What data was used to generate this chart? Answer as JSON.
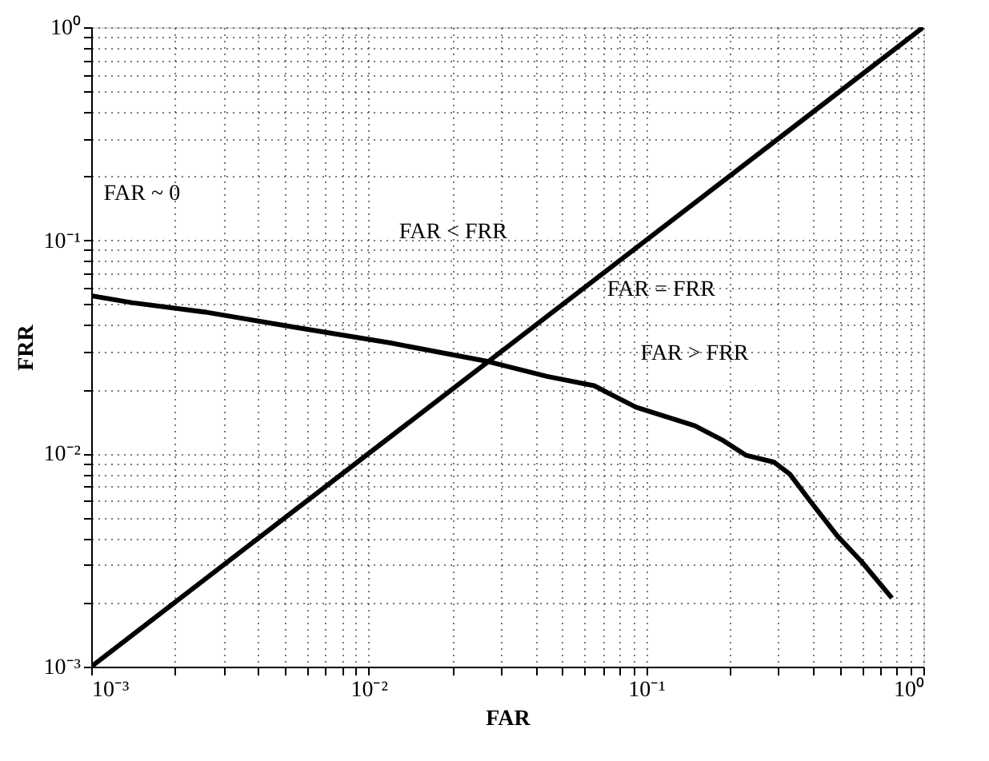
{
  "chart_data": {
    "type": "line",
    "xlabel": "FAR",
    "ylabel": "FRR",
    "log": "xy",
    "grid": true,
    "line_style": "solid",
    "marker": "none",
    "xlim": [
      0.001,
      1
    ],
    "ylim": [
      0.001,
      1
    ],
    "xticks": [
      {
        "value": 0.001,
        "label": "10⁻³"
      },
      {
        "value": 0.002,
        "label": null
      },
      {
        "value": 0.003,
        "label": null
      },
      {
        "value": 0.004,
        "label": null
      },
      {
        "value": 0.005,
        "label": null
      },
      {
        "value": 0.006,
        "label": null
      },
      {
        "value": 0.007,
        "label": null
      },
      {
        "value": 0.008,
        "label": null
      },
      {
        "value": 0.009,
        "label": null
      },
      {
        "value": 0.01,
        "label": "10⁻²"
      },
      {
        "value": 0.02,
        "label": null
      },
      {
        "value": 0.03,
        "label": null
      },
      {
        "value": 0.04,
        "label": null
      },
      {
        "value": 0.05,
        "label": null
      },
      {
        "value": 0.06,
        "label": null
      },
      {
        "value": 0.07,
        "label": null
      },
      {
        "value": 0.08,
        "label": null
      },
      {
        "value": 0.09,
        "label": null
      },
      {
        "value": 0.1,
        "label": "10⁻¹"
      },
      {
        "value": 0.2,
        "label": null
      },
      {
        "value": 0.3,
        "label": null
      },
      {
        "value": 0.4,
        "label": null
      },
      {
        "value": 0.5,
        "label": null
      },
      {
        "value": 0.6,
        "label": null
      },
      {
        "value": 0.7,
        "label": null
      },
      {
        "value": 0.8,
        "label": null
      },
      {
        "value": 0.9,
        "label": null
      },
      {
        "value": 1,
        "label": "10⁰"
      }
    ],
    "yticks": [
      {
        "value": 0.001,
        "label": "10⁻³"
      },
      {
        "value": 0.002,
        "label": null
      },
      {
        "value": 0.003,
        "label": null
      },
      {
        "value": 0.004,
        "label": null
      },
      {
        "value": 0.005,
        "label": null
      },
      {
        "value": 0.006,
        "label": null
      },
      {
        "value": 0.007,
        "label": null
      },
      {
        "value": 0.008,
        "label": null
      },
      {
        "value": 0.009,
        "label": null
      },
      {
        "value": 0.01,
        "label": "10⁻²"
      },
      {
        "value": 0.02,
        "label": null
      },
      {
        "value": 0.03,
        "label": null
      },
      {
        "value": 0.04,
        "label": null
      },
      {
        "value": 0.05,
        "label": null
      },
      {
        "value": 0.06,
        "label": null
      },
      {
        "value": 0.07,
        "label": null
      },
      {
        "value": 0.08,
        "label": null
      },
      {
        "value": 0.09,
        "label": null
      },
      {
        "value": 0.1,
        "label": "10⁻¹"
      },
      {
        "value": 0.2,
        "label": null
      },
      {
        "value": 0.3,
        "label": null
      },
      {
        "value": 0.4,
        "label": null
      },
      {
        "value": 0.5,
        "label": null
      },
      {
        "value": 0.6,
        "label": null
      },
      {
        "value": 0.7,
        "label": null
      },
      {
        "value": 0.8,
        "label": null
      },
      {
        "value": 0.9,
        "label": null
      },
      {
        "value": 1,
        "label": "10⁰"
      }
    ],
    "series": [
      {
        "color": "#000000",
        "x": [
          0.001,
          0.0014,
          0.0026,
          0.0055,
          0.012,
          0.027,
          0.044,
          0.065,
          0.092,
          0.15,
          0.19,
          0.23,
          0.29,
          0.33,
          0.39,
          0.49,
          0.6,
          0.77
        ],
        "values": [
          0.055,
          0.051,
          0.046,
          0.039,
          0.033,
          0.027,
          0.023,
          0.0208,
          0.0165,
          0.0135,
          0.0115,
          0.0098,
          0.0091,
          0.008,
          0.006,
          0.0041,
          0.0031,
          0.0021
        ]
      },
      {
        "color": "#000000",
        "x": [
          0.001,
          1
        ],
        "values": [
          0.001,
          1
        ]
      }
    ],
    "annotations": [
      "FAR ~ 0",
      "FAR < FRR",
      "FAR = FRR",
      "FAR > FRR"
    ]
  }
}
